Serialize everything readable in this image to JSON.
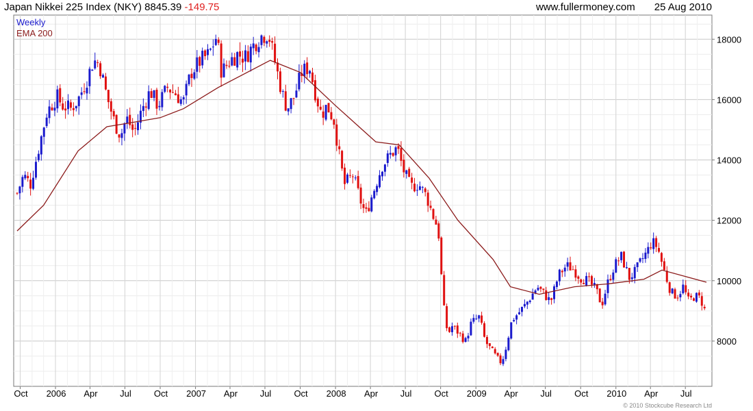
{
  "header": {
    "title": "Japan Nikkei 225 Index (NKY)",
    "last_price": "8845.39",
    "change": "-149.75",
    "website": "www.fullermoney.com",
    "date": "25 Aug 2010"
  },
  "footer": {
    "copyright": "© 2010 Stockcube Research Ltd"
  },
  "colors": {
    "up": "#1a1acd",
    "down": "#e01010",
    "ema": "#8b1a1a",
    "grid": "#d9d9d9"
  },
  "chart_data": {
    "type": "candlestick",
    "legend": [
      {
        "label": "Weekly",
        "color": "#1a1acd"
      },
      {
        "label": "EMA 200",
        "color": "#8b1a1a"
      }
    ],
    "legend_placement": "top-left",
    "frequency": "weekly",
    "start_week": "2005-09-23",
    "end_week": "2010-08-25",
    "ylim": [
      6500,
      18800
    ],
    "y_ticks": [
      8000,
      10000,
      12000,
      14000,
      16000,
      18000
    ],
    "y_axis_side": "right",
    "grid": true,
    "x_ticks": [
      {
        "label": "Oct",
        "date": "2005-10-01"
      },
      {
        "label": "2006",
        "date": "2006-01-01"
      },
      {
        "label": "Apr",
        "date": "2006-04-01"
      },
      {
        "label": "Jul",
        "date": "2006-07-01"
      },
      {
        "label": "Oct",
        "date": "2006-10-01"
      },
      {
        "label": "2007",
        "date": "2007-01-01"
      },
      {
        "label": "Apr",
        "date": "2007-04-01"
      },
      {
        "label": "Jul",
        "date": "2007-07-01"
      },
      {
        "label": "Oct",
        "date": "2007-10-01"
      },
      {
        "label": "2008",
        "date": "2008-01-01"
      },
      {
        "label": "Apr",
        "date": "2008-04-01"
      },
      {
        "label": "Jul",
        "date": "2008-07-01"
      },
      {
        "label": "Oct",
        "date": "2008-10-01"
      },
      {
        "label": "2009",
        "date": "2009-01-01"
      },
      {
        "label": "Apr",
        "date": "2009-04-01"
      },
      {
        "label": "Jul",
        "date": "2009-07-01"
      },
      {
        "label": "Oct",
        "date": "2009-10-01"
      },
      {
        "label": "2010",
        "date": "2010-01-01"
      },
      {
        "label": "Apr",
        "date": "2010-04-01"
      },
      {
        "label": "Jul",
        "date": "2010-07-01"
      }
    ],
    "close_path": [
      [
        "2005-09-23",
        12900
      ],
      [
        "2005-10-10",
        13500
      ],
      [
        "2005-10-28",
        13200
      ],
      [
        "2005-11-15",
        14200
      ],
      [
        "2005-12-10",
        15600
      ],
      [
        "2006-01-05",
        16100
      ],
      [
        "2006-01-20",
        15800
      ],
      [
        "2006-02-10",
        15700
      ],
      [
        "2006-03-01",
        16000
      ],
      [
        "2006-03-25",
        16700
      ],
      [
        "2006-04-10",
        17300
      ],
      [
        "2006-04-25",
        17200
      ],
      [
        "2006-05-15",
        16100
      ],
      [
        "2006-06-05",
        15200
      ],
      [
        "2006-06-20",
        14800
      ],
      [
        "2006-07-05",
        15400
      ],
      [
        "2006-07-25",
        14900
      ],
      [
        "2006-08-15",
        15700
      ],
      [
        "2006-09-05",
        16300
      ],
      [
        "2006-09-25",
        15800
      ],
      [
        "2006-10-20",
        16400
      ],
      [
        "2006-11-10",
        16200
      ],
      [
        "2006-11-30",
        15900
      ],
      [
        "2006-12-20",
        16900
      ],
      [
        "2007-01-15",
        17300
      ],
      [
        "2007-02-05",
        17500
      ],
      [
        "2007-02-25",
        18100
      ],
      [
        "2007-03-10",
        16900
      ],
      [
        "2007-04-01",
        17300
      ],
      [
        "2007-04-20",
        17500
      ],
      [
        "2007-05-10",
        17400
      ],
      [
        "2007-06-01",
        17800
      ],
      [
        "2007-06-20",
        18100
      ],
      [
        "2007-07-10",
        18200
      ],
      [
        "2007-07-28",
        17200
      ],
      [
        "2007-08-15",
        16200
      ],
      [
        "2007-08-28",
        15700
      ],
      [
        "2007-09-15",
        16100
      ],
      [
        "2007-10-05",
        16900
      ],
      [
        "2007-10-25",
        17100
      ],
      [
        "2007-11-10",
        16200
      ],
      [
        "2007-11-25",
        15500
      ],
      [
        "2007-12-10",
        15800
      ],
      [
        "2007-12-28",
        15300
      ],
      [
        "2008-01-15",
        13800
      ],
      [
        "2008-01-25",
        13200
      ],
      [
        "2008-02-15",
        13500
      ],
      [
        "2008-03-10",
        12500
      ],
      [
        "2008-03-20",
        12200
      ],
      [
        "2008-04-10",
        13000
      ],
      [
        "2008-05-01",
        13800
      ],
      [
        "2008-05-25",
        14200
      ],
      [
        "2008-06-10",
        14400
      ],
      [
        "2008-06-25",
        13700
      ],
      [
        "2008-07-15",
        13100
      ],
      [
        "2008-08-05",
        13200
      ],
      [
        "2008-08-25",
        12800
      ],
      [
        "2008-09-10",
        12200
      ],
      [
        "2008-09-25",
        11700
      ],
      [
        "2008-10-08",
        9200
      ],
      [
        "2008-10-20",
        8200
      ],
      [
        "2008-10-30",
        8500
      ],
      [
        "2008-11-15",
        8300
      ],
      [
        "2008-12-05",
        8000
      ],
      [
        "2008-12-20",
        8600
      ],
      [
        "2009-01-10",
        8800
      ],
      [
        "2009-01-25",
        8000
      ],
      [
        "2009-02-15",
        7600
      ],
      [
        "2009-03-05",
        7300
      ],
      [
        "2009-03-15",
        7500
      ],
      [
        "2009-04-05",
        8700
      ],
      [
        "2009-04-20",
        8900
      ],
      [
        "2009-05-10",
        9200
      ],
      [
        "2009-06-10",
        9800
      ],
      [
        "2009-06-25",
        9600
      ],
      [
        "2009-07-15",
        9300
      ],
      [
        "2009-08-05",
        10200
      ],
      [
        "2009-08-25",
        10500
      ],
      [
        "2009-09-10",
        10400
      ],
      [
        "2009-09-30",
        10100
      ],
      [
        "2009-10-20",
        10000
      ],
      [
        "2009-11-10",
        9700
      ],
      [
        "2009-11-25",
        9200
      ],
      [
        "2009-12-10",
        9900
      ],
      [
        "2009-12-28",
        10500
      ],
      [
        "2010-01-15",
        10800
      ],
      [
        "2010-02-05",
        10100
      ],
      [
        "2010-02-20",
        10300
      ],
      [
        "2010-03-10",
        10700
      ],
      [
        "2010-03-25",
        11000
      ],
      [
        "2010-04-05",
        11300
      ],
      [
        "2010-04-20",
        11100
      ],
      [
        "2010-05-05",
        10400
      ],
      [
        "2010-05-25",
        9600
      ],
      [
        "2010-06-10",
        9500
      ],
      [
        "2010-06-25",
        9800
      ],
      [
        "2010-07-10",
        9300
      ],
      [
        "2010-07-25",
        9500
      ],
      [
        "2010-08-10",
        9400
      ],
      [
        "2010-08-25",
        8850
      ]
    ],
    "ema_200": [
      [
        "2005-09-23",
        11650
      ],
      [
        "2005-12-01",
        12500
      ],
      [
        "2006-03-01",
        14300
      ],
      [
        "2006-05-15",
        15100
      ],
      [
        "2006-07-01",
        15200
      ],
      [
        "2006-10-01",
        15400
      ],
      [
        "2006-12-01",
        15700
      ],
      [
        "2007-03-01",
        16400
      ],
      [
        "2007-07-15",
        17300
      ],
      [
        "2007-10-01",
        16900
      ],
      [
        "2008-01-01",
        15800
      ],
      [
        "2008-04-15",
        14600
      ],
      [
        "2008-06-15",
        14500
      ],
      [
        "2008-09-01",
        13400
      ],
      [
        "2008-11-15",
        12000
      ],
      [
        "2009-02-15",
        10700
      ],
      [
        "2009-04-01",
        9800
      ],
      [
        "2009-06-15",
        9550
      ],
      [
        "2009-09-15",
        9800
      ],
      [
        "2009-12-15",
        9900
      ],
      [
        "2010-03-15",
        10050
      ],
      [
        "2010-05-01",
        10350
      ],
      [
        "2010-08-25",
        9950
      ]
    ]
  }
}
